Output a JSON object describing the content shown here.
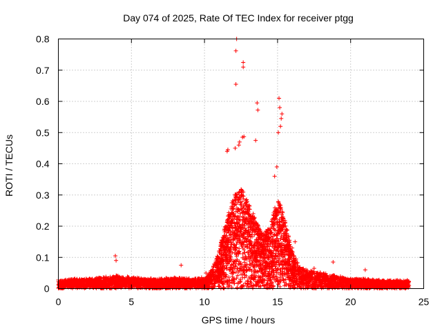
{
  "chart_data": {
    "type": "scatter",
    "title": "Day 074 of 2025, Rate Of TEC Index for receiver ptgg",
    "xlabel": "GPS time / hours",
    "ylabel": "ROTI / TECUs",
    "xlim": [
      0,
      25
    ],
    "ylim": [
      0,
      0.8
    ],
    "xticks": [
      0,
      5,
      10,
      15,
      20,
      25
    ],
    "yticks": [
      0,
      0.1,
      0.2,
      0.3,
      0.4,
      0.5,
      0.6,
      0.7,
      0.8
    ],
    "grid": true,
    "marker": "+",
    "color": "#ff0000",
    "series": [
      {
        "name": "ROTI",
        "envelope_hours": [
          0,
          1,
          2,
          3,
          4,
          5,
          6,
          7,
          8,
          9,
          10,
          10.5,
          11,
          11.5,
          12,
          12.5,
          13,
          13.5,
          14,
          14.5,
          15,
          15.5,
          16,
          16.5,
          17,
          18,
          19,
          20,
          21,
          22,
          23,
          24
        ],
        "envelope_typical_max": [
          0.025,
          0.03,
          0.03,
          0.035,
          0.04,
          0.035,
          0.03,
          0.03,
          0.035,
          0.03,
          0.035,
          0.06,
          0.12,
          0.22,
          0.3,
          0.32,
          0.28,
          0.22,
          0.17,
          0.2,
          0.3,
          0.22,
          0.12,
          0.07,
          0.06,
          0.05,
          0.04,
          0.03,
          0.03,
          0.025,
          0.025,
          0.025
        ],
        "x": [
          12.2,
          12.15,
          12.65,
          12.65,
          12.15,
          13.6,
          13.65,
          15.1,
          15.15,
          15.3,
          15.25,
          13.5,
          12.7,
          12.6,
          12.4,
          12.35,
          12.1,
          11.6,
          11.55,
          15.05,
          15.2,
          14.95,
          14.8,
          3.9,
          3.95,
          8.4,
          18.8,
          21.0,
          10.1,
          11.0,
          13.0,
          16.2,
          16.0,
          17.5
        ],
        "y": [
          0.8,
          0.762,
          0.725,
          0.71,
          0.655,
          0.595,
          0.572,
          0.61,
          0.58,
          0.56,
          0.545,
          0.475,
          0.487,
          0.485,
          0.47,
          0.46,
          0.45,
          0.445,
          0.44,
          0.5,
          0.52,
          0.39,
          0.36,
          0.105,
          0.09,
          0.075,
          0.085,
          0.06,
          0.05,
          0.12,
          0.26,
          0.15,
          0.13,
          0.065
        ]
      }
    ]
  }
}
